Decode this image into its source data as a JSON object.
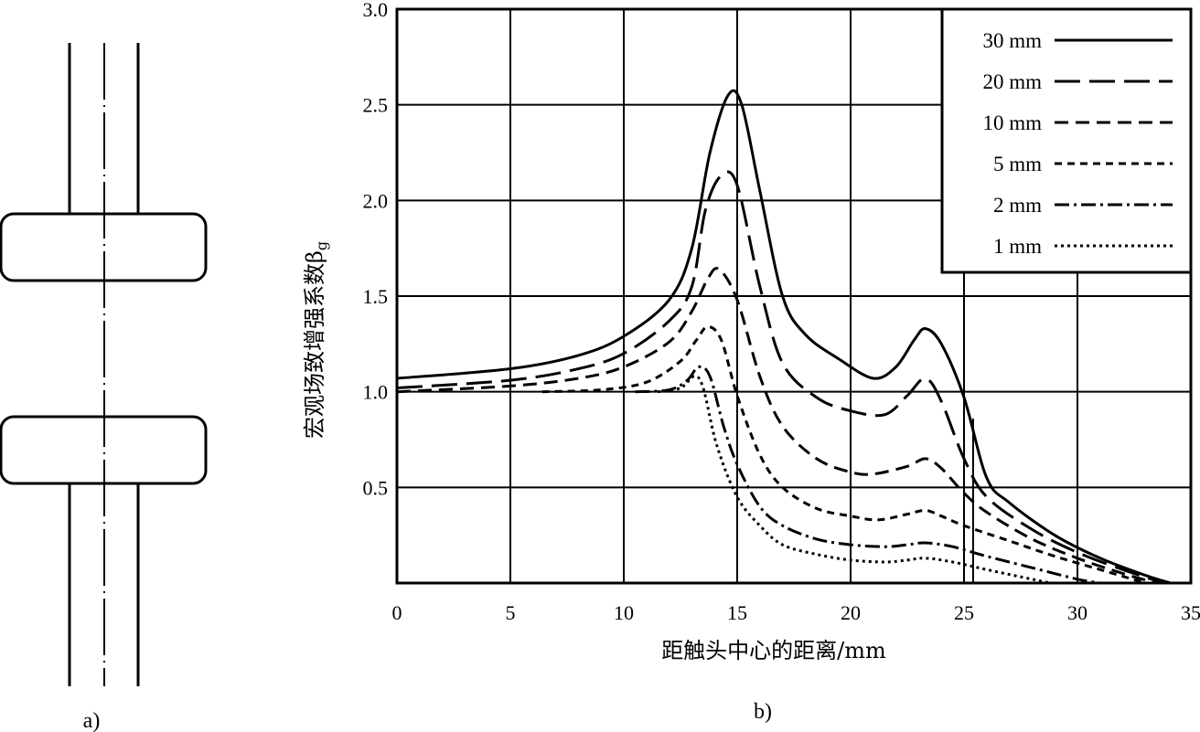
{
  "panel_a": {
    "caption": "a)"
  },
  "panel_b": {
    "caption": "b)"
  },
  "chart_data": {
    "type": "line",
    "title": "",
    "xlabel": "距触头中心的距离/mm",
    "ylabel_main": "宏观场致增强系数β",
    "ylabel_sub": "g",
    "xlim": [
      0,
      35
    ],
    "ylim": [
      0,
      3.0
    ],
    "x_ticks": [
      "0",
      "5",
      "10",
      "15",
      "20",
      "25",
      "30",
      "35"
    ],
    "y_ticks": [
      "0.5",
      "1.0",
      "1.5",
      "2.0",
      "2.5",
      "3.0"
    ],
    "grid": true,
    "legend_position": "top-right",
    "series": [
      {
        "name": "30 mm",
        "dash": "solid",
        "points": [
          [
            0,
            1.07
          ],
          [
            5,
            1.12
          ],
          [
            8,
            1.19
          ],
          [
            10,
            1.29
          ],
          [
            12,
            1.48
          ],
          [
            13,
            1.75
          ],
          [
            13.8,
            2.25
          ],
          [
            14.6,
            2.55
          ],
          [
            15.2,
            2.5
          ],
          [
            16,
            2.05
          ],
          [
            17,
            1.5
          ],
          [
            18,
            1.3
          ],
          [
            19.5,
            1.17
          ],
          [
            21,
            1.07
          ],
          [
            22,
            1.13
          ],
          [
            22.8,
            1.27
          ],
          [
            23.3,
            1.33
          ],
          [
            24,
            1.25
          ],
          [
            25,
            0.97
          ],
          [
            26,
            0.55
          ],
          [
            27,
            0.42
          ],
          [
            29,
            0.25
          ],
          [
            31,
            0.13
          ],
          [
            33,
            0.04
          ],
          [
            34.1,
            0.0
          ]
        ]
      },
      {
        "name": "20 mm",
        "dash": "28 10",
        "points": [
          [
            0,
            1.02
          ],
          [
            5,
            1.06
          ],
          [
            8,
            1.12
          ],
          [
            10,
            1.2
          ],
          [
            12,
            1.37
          ],
          [
            13,
            1.55
          ],
          [
            13.6,
            1.95
          ],
          [
            14.3,
            2.13
          ],
          [
            15,
            2.08
          ],
          [
            16,
            1.55
          ],
          [
            17,
            1.15
          ],
          [
            18.5,
            0.97
          ],
          [
            20,
            0.9
          ],
          [
            21.5,
            0.88
          ],
          [
            22.5,
            0.98
          ],
          [
            23.3,
            1.07
          ],
          [
            24,
            0.95
          ],
          [
            25,
            0.65
          ],
          [
            26,
            0.45
          ],
          [
            28,
            0.28
          ],
          [
            30,
            0.16
          ],
          [
            32,
            0.07
          ],
          [
            33.8,
            0.0
          ]
        ]
      },
      {
        "name": "10 mm",
        "dash": "15 8",
        "points": [
          [
            0,
            1.0
          ],
          [
            5,
            1.03
          ],
          [
            8,
            1.07
          ],
          [
            10,
            1.13
          ],
          [
            12,
            1.26
          ],
          [
            13,
            1.42
          ],
          [
            13.7,
            1.59
          ],
          [
            14.2,
            1.64
          ],
          [
            15,
            1.48
          ],
          [
            16,
            1.08
          ],
          [
            17,
            0.82
          ],
          [
            18.5,
            0.65
          ],
          [
            20,
            0.58
          ],
          [
            21,
            0.57
          ],
          [
            22.5,
            0.61
          ],
          [
            23.3,
            0.65
          ],
          [
            24,
            0.6
          ],
          [
            25,
            0.47
          ],
          [
            26,
            0.37
          ],
          [
            28,
            0.23
          ],
          [
            30,
            0.13
          ],
          [
            32,
            0.05
          ],
          [
            33.5,
            0.0
          ]
        ]
      },
      {
        "name": "5 mm",
        "dash": "8 6",
        "points": [
          [
            6.4,
            1.0
          ],
          [
            9,
            1.01
          ],
          [
            11,
            1.05
          ],
          [
            12.5,
            1.16
          ],
          [
            13.2,
            1.27
          ],
          [
            13.7,
            1.34
          ],
          [
            14.3,
            1.27
          ],
          [
            15,
            0.98
          ],
          [
            16,
            0.67
          ],
          [
            17,
            0.5
          ],
          [
            18.5,
            0.39
          ],
          [
            20,
            0.35
          ],
          [
            21.2,
            0.33
          ],
          [
            22.5,
            0.36
          ],
          [
            23.3,
            0.38
          ],
          [
            24,
            0.35
          ],
          [
            25,
            0.3
          ],
          [
            27,
            0.22
          ],
          [
            29,
            0.14
          ],
          [
            31,
            0.07
          ],
          [
            33,
            0.0
          ]
        ]
      },
      {
        "name": "2 mm",
        "dash": "16 5 3 5",
        "points": [
          [
            10.5,
            1.0
          ],
          [
            12,
            1.01
          ],
          [
            12.8,
            1.06
          ],
          [
            13.3,
            1.13
          ],
          [
            13.8,
            1.08
          ],
          [
            14.4,
            0.82
          ],
          [
            15,
            0.62
          ],
          [
            16,
            0.4
          ],
          [
            17,
            0.3
          ],
          [
            18.5,
            0.23
          ],
          [
            20,
            0.2
          ],
          [
            21.5,
            0.19
          ],
          [
            22.5,
            0.2
          ],
          [
            23.3,
            0.21
          ],
          [
            24.5,
            0.19
          ],
          [
            26,
            0.14
          ],
          [
            28,
            0.08
          ],
          [
            30,
            0.02
          ],
          [
            31,
            0.0
          ]
        ]
      },
      {
        "name": "1 mm",
        "dash": "3 4",
        "points": [
          [
            11.5,
            1.0
          ],
          [
            12.5,
            1.02
          ],
          [
            13.1,
            1.08
          ],
          [
            13.5,
            1.02
          ],
          [
            14.1,
            0.72
          ],
          [
            15,
            0.45
          ],
          [
            16,
            0.3
          ],
          [
            17,
            0.2
          ],
          [
            18.5,
            0.15
          ],
          [
            20,
            0.12
          ],
          [
            21.5,
            0.11
          ],
          [
            22.5,
            0.12
          ],
          [
            23.3,
            0.13
          ],
          [
            24.5,
            0.11
          ],
          [
            26,
            0.07
          ],
          [
            28,
            0.02
          ],
          [
            28.8,
            0.0
          ]
        ]
      }
    ],
    "annotations": [
      {
        "type": "vertical_segment",
        "x": 25.4,
        "y_from": 0.0,
        "y_to": 0.86
      }
    ]
  }
}
